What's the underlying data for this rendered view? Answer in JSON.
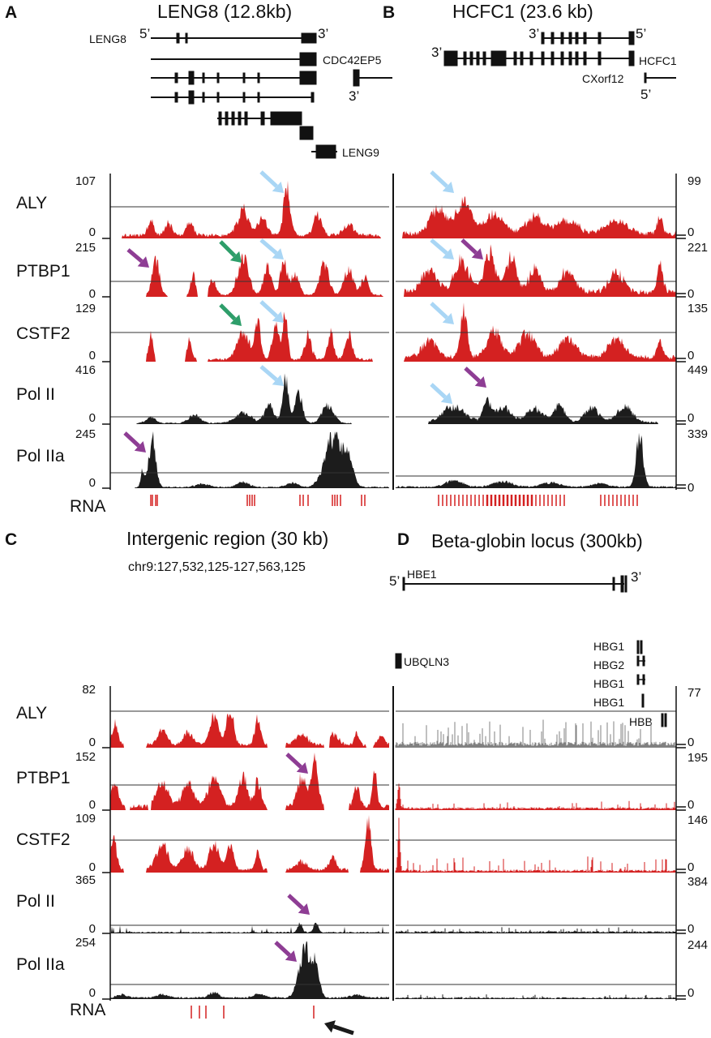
{
  "colors": {
    "red": "#d42121",
    "black": "#1c1c1c",
    "grey": "#808080",
    "light_blue_arrow": "#a9d6f5",
    "purple_arrow": "#8e3d94",
    "green_arrow": "#2e9e6a",
    "black_arrow": "#1a1a1a"
  },
  "panels": [
    {
      "letter": "A",
      "title": "LENG8 (12.8kb)"
    },
    {
      "letter": "B",
      "title": "HCFC1 (23.6 kb)"
    },
    {
      "letter": "C",
      "title": "Intergenic region (30 kb)",
      "coordinates": "chr9:127,532,125-127,563,125"
    },
    {
      "letter": "D",
      "title": "Beta-globin locus (300kb)"
    }
  ],
  "gene_labels": {
    "A": [
      "LENG8",
      "CDC42EP5",
      "LENG9"
    ],
    "B": [
      "HCFC1",
      "CXorf12"
    ],
    "D": [
      "HBE1",
      "UBQLN3",
      "HBG1",
      "HBG2",
      "HBG1",
      "HBG1",
      "HBB"
    ]
  },
  "strand_labels": {
    "A": [
      "5’",
      "3’",
      "3’"
    ],
    "B": [
      "3’",
      "5’",
      "3’",
      "5’"
    ],
    "D": [
      "5’",
      "3’"
    ]
  },
  "track_labels": [
    "ALY",
    "PTBP1",
    "CSTF2",
    "Pol II",
    "Pol IIa"
  ],
  "rna_label": "RNA",
  "scales": {
    "A": [
      [
        "107",
        "0"
      ],
      [
        "215",
        "0"
      ],
      [
        "129",
        "0"
      ],
      [
        "416",
        "0"
      ],
      [
        "245",
        "0"
      ]
    ],
    "B": [
      [
        "99",
        "0"
      ],
      [
        "221",
        "0"
      ],
      [
        "135",
        "0"
      ],
      [
        "449",
        "0"
      ],
      [
        "339",
        "0"
      ]
    ],
    "C": [
      [
        "82",
        "0"
      ],
      [
        "152",
        "0"
      ],
      [
        "109",
        "0"
      ],
      [
        "365",
        "0"
      ],
      [
        "254",
        "0"
      ]
    ],
    "D": [
      [
        "77",
        "0"
      ],
      [
        "195",
        "0"
      ],
      [
        "146",
        "0"
      ],
      [
        "384",
        "0"
      ],
      [
        "244",
        "0"
      ]
    ]
  }
}
